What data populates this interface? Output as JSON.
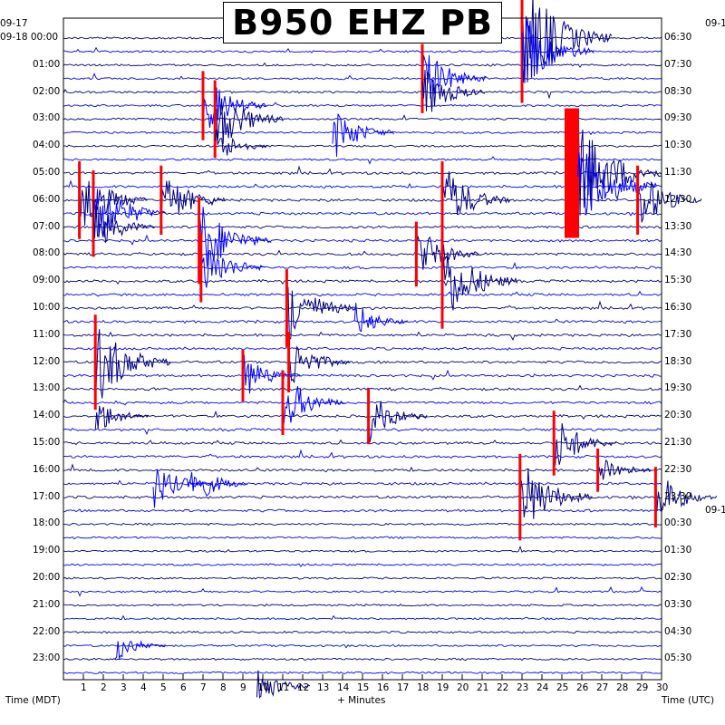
{
  "chart_data": {
    "type": "line",
    "title": "B950 EHZ PB",
    "xlabel": "+ Minutes",
    "left_axis_label": "Time (MDT)",
    "right_axis_label": "Time (UTC)",
    "x_ticks": [
      "1",
      "2",
      "3",
      "4",
      "5",
      "6",
      "7",
      "8",
      "9",
      "10",
      "11",
      "12",
      "13",
      "14",
      "15",
      "16",
      "17",
      "18",
      "19",
      "20",
      "21",
      "22",
      "23",
      "24",
      "25",
      "26",
      "27",
      "28",
      "29",
      "30"
    ],
    "xlim": [
      0,
      30
    ],
    "left_date_start": "09-17",
    "left_date_main": "09-18",
    "right_date_start": "09-1",
    "right_date_change": "09-1",
    "left_hour_labels": [
      "00:00",
      "01:00",
      "02:00",
      "03:00",
      "04:00",
      "05:00",
      "06:00",
      "07:00",
      "08:00",
      "09:00",
      "10:00",
      "11:00",
      "12:00",
      "13:00",
      "14:00",
      "15:00",
      "16:00",
      "17:00",
      "18:00",
      "19:00",
      "20:00",
      "21:00",
      "22:00",
      "23:00"
    ],
    "right_hour_labels": [
      "06:30",
      "07:30",
      "08:30",
      "09:30",
      "10:30",
      "11:30",
      "12:30",
      "13:30",
      "14:30",
      "15:30",
      "16:30",
      "17:30",
      "18:30",
      "19:30",
      "20:30",
      "21:30",
      "22:30",
      "23:30",
      "00:30",
      "01:30",
      "02:30",
      "03:30",
      "04:30",
      "05:30"
    ],
    "traces_per_hour": 2,
    "trace_colors": [
      "#000080",
      "#0000ff"
    ],
    "clip_color": "#ff0000",
    "events": [
      {
        "t": 23.0,
        "r": 0,
        "a": 3.0,
        "clip": true
      },
      {
        "t": 23.0,
        "r": 1,
        "a": 2.0
      },
      {
        "t": 18.0,
        "r": 3,
        "a": 1.6,
        "clip": true
      },
      {
        "t": 18.0,
        "r": 4,
        "a": 1.5
      },
      {
        "t": 7.0,
        "r": 5,
        "a": 1.6,
        "clip": true
      },
      {
        "t": 7.6,
        "r": 6,
        "a": 1.8,
        "clip": true
      },
      {
        "t": 13.5,
        "r": 7,
        "a": 1.4
      },
      {
        "t": 7.6,
        "r": 8,
        "a": 1.0
      },
      {
        "t": 25.5,
        "r": 10,
        "a": 3.0,
        "clip": true,
        "big": true
      },
      {
        "t": 25.8,
        "r": 11,
        "a": 2.4
      },
      {
        "t": 0.8,
        "r": 12,
        "a": 1.8,
        "clip": true
      },
      {
        "t": 1.5,
        "r": 13,
        "a": 2.0,
        "clip": true
      },
      {
        "t": 4.9,
        "r": 12,
        "a": 1.6,
        "clip": true
      },
      {
        "t": 19.0,
        "r": 12,
        "a": 1.8,
        "clip": true
      },
      {
        "t": 28.8,
        "r": 12,
        "a": 1.6,
        "clip": true
      },
      {
        "t": 1.5,
        "r": 14,
        "a": 1.4
      },
      {
        "t": 6.8,
        "r": 15,
        "a": 2.0,
        "clip": true
      },
      {
        "t": 17.7,
        "r": 16,
        "a": 1.5,
        "clip": true
      },
      {
        "t": 6.9,
        "r": 17,
        "a": 1.6,
        "clip": true
      },
      {
        "t": 19.0,
        "r": 18,
        "a": 2.2,
        "clip": true
      },
      {
        "t": 11.2,
        "r": 20,
        "a": 1.8,
        "clip": true
      },
      {
        "t": 14.6,
        "r": 21,
        "a": 1.0
      },
      {
        "t": 1.6,
        "r": 24,
        "a": 2.2,
        "clip": true
      },
      {
        "t": 11.3,
        "r": 24,
        "a": 1.4,
        "clip": true
      },
      {
        "t": 9.0,
        "r": 25,
        "a": 1.2,
        "clip": true
      },
      {
        "t": 11.0,
        "r": 27,
        "a": 1.5,
        "clip": true
      },
      {
        "t": 15.3,
        "r": 28,
        "a": 1.3,
        "clip": true
      },
      {
        "t": 1.6,
        "r": 28,
        "a": 1.0
      },
      {
        "t": 24.6,
        "r": 30,
        "a": 1.5,
        "clip": true
      },
      {
        "t": 26.8,
        "r": 32,
        "a": 1.0,
        "clip": true
      },
      {
        "t": 6.3,
        "r": 33,
        "a": 1.3
      },
      {
        "t": 4.5,
        "r": 33,
        "a": 1.2
      },
      {
        "t": 22.9,
        "r": 34,
        "a": 2.0,
        "clip": true
      },
      {
        "t": 29.7,
        "r": 34,
        "a": 1.4,
        "clip": true
      },
      {
        "t": 9.7,
        "r": 48,
        "a": 1.0
      },
      {
        "t": 2.6,
        "r": 45,
        "a": 0.8
      }
    ]
  }
}
